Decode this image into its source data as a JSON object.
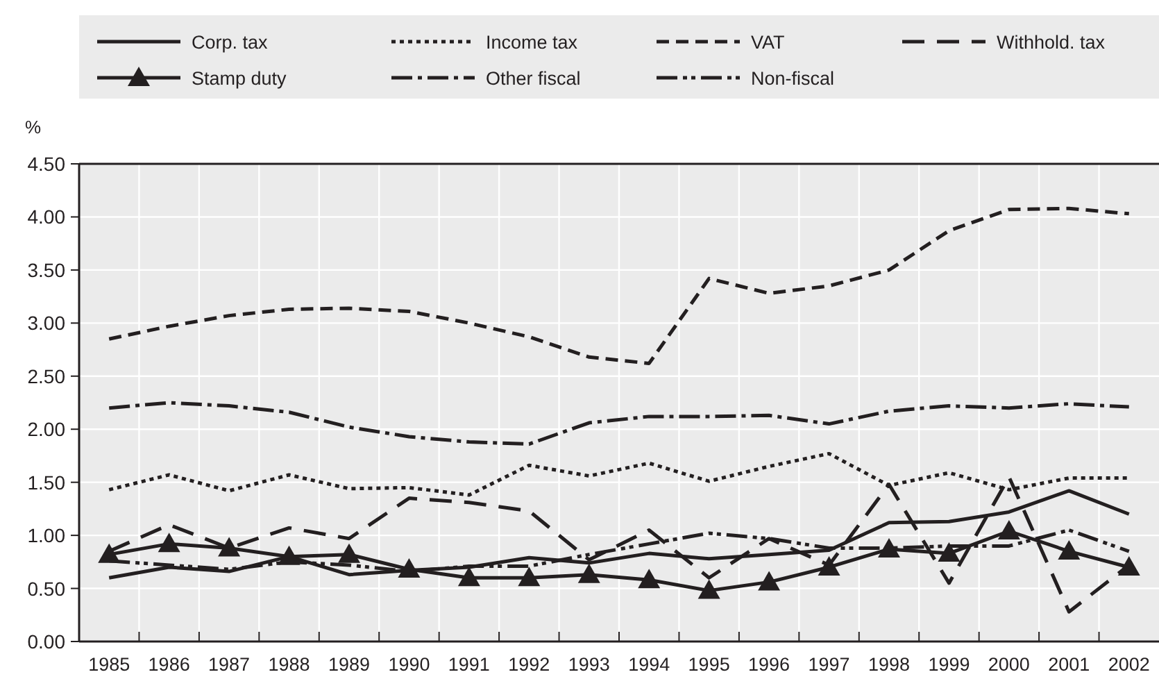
{
  "chart_data": {
    "type": "line",
    "ylabel": "%",
    "categories": [
      "1985",
      "1986",
      "1987",
      "1988",
      "1989",
      "1990",
      "1991",
      "1992",
      "1993",
      "1994",
      "1995",
      "1996",
      "1997",
      "1998",
      "1999",
      "2000",
      "2001",
      "2002"
    ],
    "ylim": [
      0,
      4.5
    ],
    "yticks": [
      {
        "value": 0,
        "label": "0.00"
      },
      {
        "value": 0.5,
        "label": "0.50"
      },
      {
        "value": 1,
        "label": "1.00"
      },
      {
        "value": 1.5,
        "label": "1.50"
      },
      {
        "value": 2,
        "label": "2.00"
      },
      {
        "value": 2.5,
        "label": "2.50"
      },
      {
        "value": 3,
        "label": "3.00"
      },
      {
        "value": 3.5,
        "label": "3.50"
      },
      {
        "value": 4,
        "label": "4.00"
      },
      {
        "value": 4.5,
        "label": "4.50"
      }
    ],
    "grid": true,
    "legend": "top",
    "marker": "none",
    "series": [
      {
        "name": "Corp. tax",
        "color": "#231f20",
        "line_style": "solid",
        "values": [
          0.6,
          0.7,
          0.66,
          0.8,
          0.63,
          0.67,
          0.7,
          0.79,
          0.74,
          0.83,
          0.78,
          0.82,
          0.86,
          1.12,
          1.13,
          1.22,
          1.42,
          1.2
        ]
      },
      {
        "name": "Income tax",
        "color": "#231f20",
        "line_style": "dotted",
        "values": [
          1.43,
          1.57,
          1.42,
          1.57,
          1.44,
          1.45,
          1.38,
          1.66,
          1.56,
          1.68,
          1.51,
          1.65,
          1.77,
          1.47,
          1.59,
          1.43,
          1.54,
          1.54
        ]
      },
      {
        "name": "VAT",
        "color": "#231f20",
        "line_style": "dashed",
        "values": [
          2.85,
          2.97,
          3.07,
          3.13,
          3.14,
          3.11,
          3.0,
          2.87,
          2.68,
          2.62,
          3.42,
          3.28,
          3.35,
          3.5,
          3.87,
          4.07,
          4.08,
          4.03
        ]
      },
      {
        "name": "Withhold. tax",
        "color": "#231f20",
        "line_style": "longdash",
        "values": [
          0.85,
          1.1,
          0.88,
          1.07,
          0.97,
          1.35,
          1.31,
          1.23,
          0.77,
          1.05,
          0.6,
          0.97,
          0.72,
          1.48,
          0.55,
          1.55,
          0.28,
          0.72
        ]
      },
      {
        "name": "Stamp duty",
        "color": "#231f20",
        "line_style": "solid",
        "marker": "triangle",
        "values": [
          0.82,
          0.92,
          0.88,
          0.8,
          0.82,
          0.68,
          0.6,
          0.6,
          0.63,
          0.58,
          0.48,
          0.56,
          0.7,
          0.87,
          0.83,
          1.04,
          0.85,
          0.7
        ]
      },
      {
        "name": "Other fiscal",
        "color": "#231f20",
        "line_style": "dashdot",
        "values": [
          2.2,
          2.25,
          2.22,
          2.16,
          2.02,
          1.93,
          1.88,
          1.86,
          2.06,
          2.12,
          2.12,
          2.13,
          2.05,
          2.17,
          2.22,
          2.2,
          2.24,
          2.21
        ]
      },
      {
        "name": "Non-fiscal",
        "color": "#231f20",
        "line_style": "dashdotdot",
        "values": [
          0.76,
          0.72,
          0.68,
          0.75,
          0.72,
          0.66,
          0.71,
          0.71,
          0.82,
          0.92,
          1.02,
          0.97,
          0.88,
          0.88,
          0.9,
          0.9,
          1.05,
          0.85
        ]
      }
    ]
  }
}
